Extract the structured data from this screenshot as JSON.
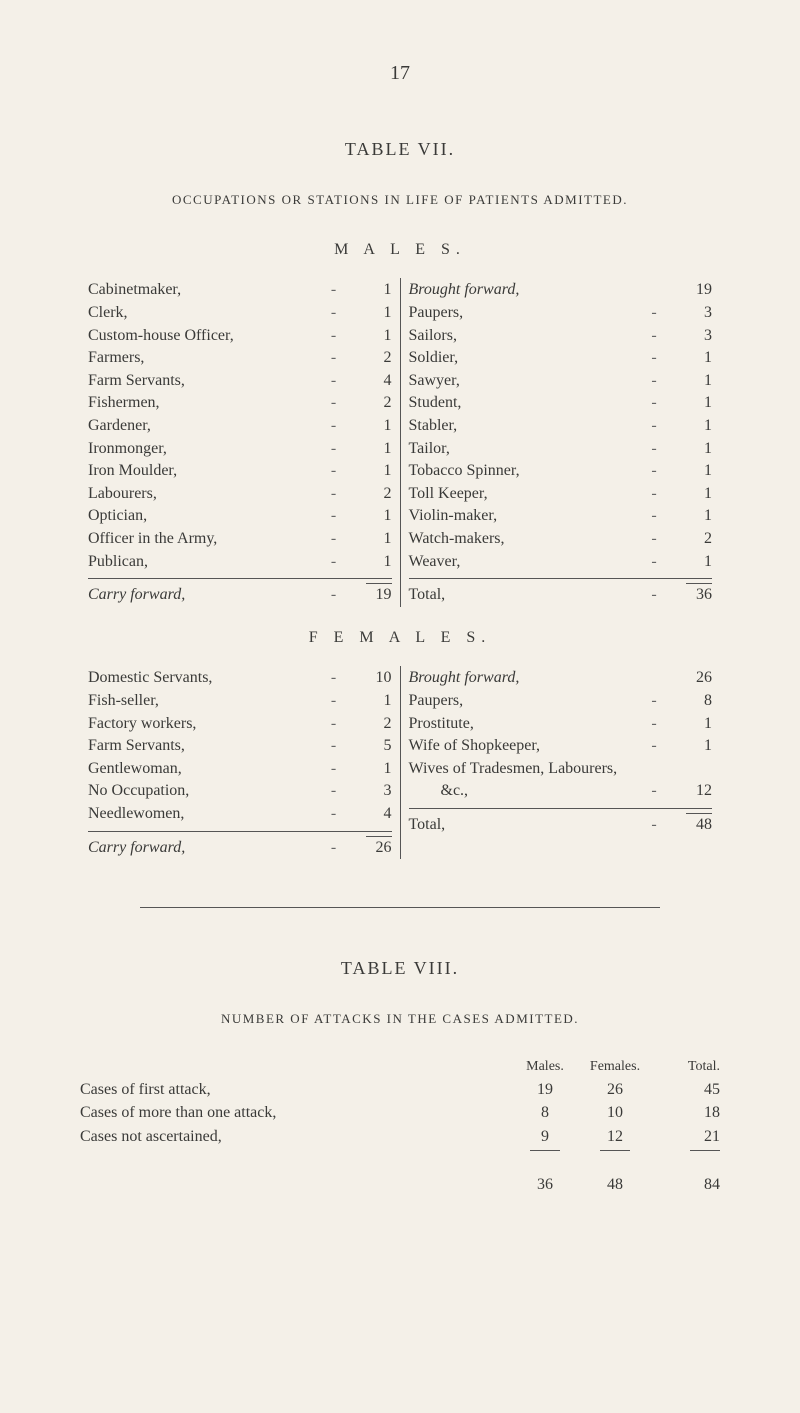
{
  "page_number": "17",
  "table7": {
    "title": "TABLE VII.",
    "subtitle": "OCCUPATIONS OR STATIONS IN LIFE OF PATIENTS ADMITTED.",
    "males": {
      "heading": "M A L E S.",
      "left": [
        {
          "label": "Cabinetmaker,",
          "val": "1"
        },
        {
          "label": "Clerk,",
          "val": "1"
        },
        {
          "label": "Custom-house Officer,",
          "val": "1"
        },
        {
          "label": "Farmers,",
          "val": "2"
        },
        {
          "label": "Farm Servants,",
          "val": "4"
        },
        {
          "label": "Fishermen,",
          "val": "2"
        },
        {
          "label": "Gardener,",
          "val": "1"
        },
        {
          "label": "Ironmonger,",
          "val": "1"
        },
        {
          "label": "Iron Moulder,",
          "val": "1"
        },
        {
          "label": "Labourers,",
          "val": "2"
        },
        {
          "label": "Optician,",
          "val": "1"
        },
        {
          "label": "Officer in the Army,",
          "val": "1"
        },
        {
          "label": "Publican,",
          "val": "1"
        }
      ],
      "left_carry": {
        "label": "Carry forward,",
        "val": "19"
      },
      "right_first": {
        "label": "Brought forward,",
        "val": "19"
      },
      "right": [
        {
          "label": "Paupers,",
          "val": "3"
        },
        {
          "label": "Sailors,",
          "val": "3"
        },
        {
          "label": "Soldier,",
          "val": "1"
        },
        {
          "label": "Sawyer,",
          "val": "1"
        },
        {
          "label": "Student,",
          "val": "1"
        },
        {
          "label": "Stabler,",
          "val": "1"
        },
        {
          "label": "Tailor,",
          "val": "1"
        },
        {
          "label": "Tobacco Spinner,",
          "val": "1"
        },
        {
          "label": "Toll Keeper,",
          "val": "1"
        },
        {
          "label": "Violin-maker,",
          "val": "1"
        },
        {
          "label": "Watch-makers,",
          "val": "2"
        },
        {
          "label": "Weaver,",
          "val": "1"
        }
      ],
      "right_total": {
        "label": "Total,",
        "val": "36"
      }
    },
    "females": {
      "heading": "F E M A L E S.",
      "left": [
        {
          "label": "Domestic Servants,",
          "val": "10"
        },
        {
          "label": "Fish-seller,",
          "val": "1"
        },
        {
          "label": "Factory workers,",
          "val": "2"
        },
        {
          "label": "Farm Servants,",
          "val": "5"
        },
        {
          "label": "Gentlewoman,",
          "val": "1"
        },
        {
          "label": "No Occupation,",
          "val": "3"
        },
        {
          "label": "Needlewomen,",
          "val": "4"
        }
      ],
      "left_carry": {
        "label": "Carry forward,",
        "val": "26"
      },
      "right_first": {
        "label": "Brought forward,",
        "val": "26"
      },
      "right": [
        {
          "label": "Paupers,",
          "val": "8"
        },
        {
          "label": "Prostitute,",
          "val": "1"
        },
        {
          "label": "Wife of Shopkeeper,",
          "val": "1"
        }
      ],
      "right_extra_label": "Wives of Tradesmen, Labourers,",
      "right_extra": {
        "label": "&c.,",
        "val": "12"
      },
      "right_total": {
        "label": "Total,",
        "val": "48"
      }
    }
  },
  "table8": {
    "title": "TABLE VIII.",
    "subtitle": "NUMBER OF ATTACKS IN THE CASES ADMITTED.",
    "headers": {
      "males": "Males.",
      "females": "Females.",
      "total": "Total."
    },
    "rows": [
      {
        "label": "Cases of first attack,",
        "m": "19",
        "f": "26",
        "t": "45"
      },
      {
        "label": "Cases of more than one attack,",
        "m": "8",
        "f": "10",
        "t": "18"
      },
      {
        "label": "Cases not ascertained,",
        "m": "9",
        "f": "12",
        "t": "21"
      }
    ],
    "total": {
      "m": "36",
      "f": "48",
      "t": "84"
    }
  }
}
